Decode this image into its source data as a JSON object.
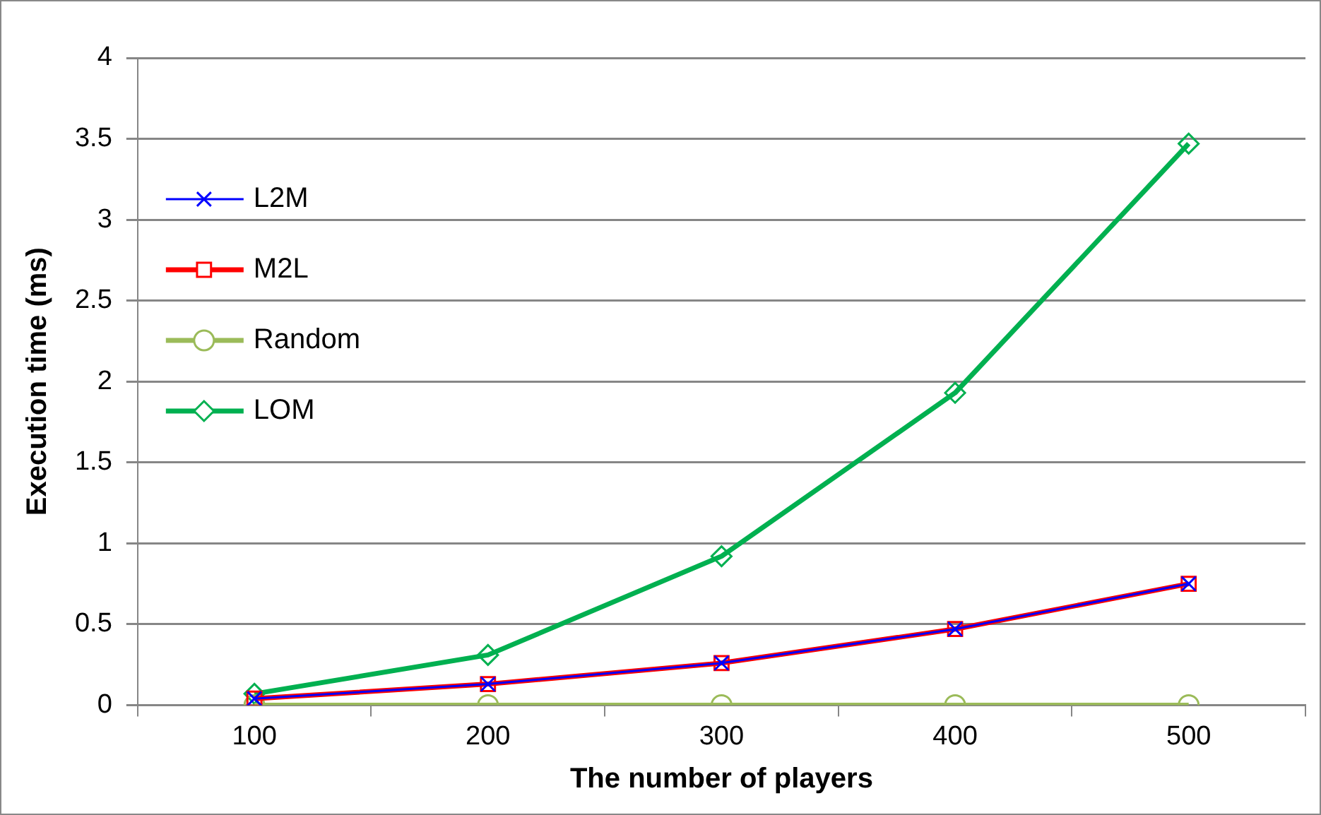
{
  "chart_data": {
    "type": "line",
    "xlabel": "The number of players",
    "ylabel": "Execution time (ms)",
    "categories": [
      "100",
      "200",
      "300",
      "400",
      "500"
    ],
    "series": [
      {
        "name": "L2M",
        "color": "#0000ff",
        "marker": "cross",
        "values": [
          0.04,
          0.13,
          0.26,
          0.47,
          0.75
        ]
      },
      {
        "name": "M2L",
        "color": "#ff0000",
        "marker": "square",
        "values": [
          0.04,
          0.13,
          0.26,
          0.47,
          0.75
        ]
      },
      {
        "name": "Random",
        "color": "#9bbb59",
        "marker": "circle",
        "values": [
          0,
          0,
          0,
          0,
          0
        ]
      },
      {
        "name": "LOM",
        "color": "#00b050",
        "marker": "diamond",
        "values": [
          0.07,
          0.31,
          0.92,
          1.93,
          3.47
        ]
      }
    ],
    "ylim": [
      0,
      4
    ],
    "yticks": [
      0,
      0.5,
      1,
      1.5,
      2,
      2.5,
      3,
      3.5,
      4
    ],
    "grid": "y",
    "legend": "top left",
    "line_style": "solid"
  }
}
